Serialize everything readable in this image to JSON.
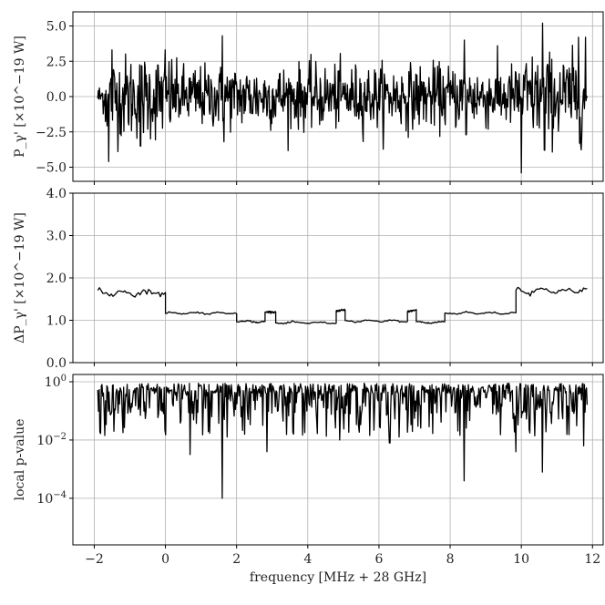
{
  "chart_data": [
    {
      "type": "line",
      "ylabel": "P_γ' [×10^−19 W]",
      "ylim": [
        -6.0,
        6.0
      ],
      "yticks": [
        5.0,
        2.5,
        0.0,
        -2.5,
        -5.0
      ],
      "ytick_labels": [
        "5.0",
        "2.5",
        "0.0",
        "−2.5",
        "−5.0"
      ],
      "xlim": [
        -2.6,
        12.3
      ],
      "grid": true,
      "x_range": [
        -1.9,
        11.85
      ],
      "noise_sigma": 1.1,
      "spikes": [
        {
          "x": -1.6,
          "y": -4.6
        },
        {
          "x": -1.5,
          "y": 3.3
        },
        {
          "x": -0.7,
          "y": -3.5
        },
        {
          "x": 0.0,
          "y": 3.3
        },
        {
          "x": 1.6,
          "y": 4.3
        },
        {
          "x": 1.65,
          "y": -3.2
        },
        {
          "x": 8.4,
          "y": 4.0
        },
        {
          "x": 8.45,
          "y": -2.7
        },
        {
          "x": 10.0,
          "y": -5.4
        },
        {
          "x": 10.6,
          "y": 5.2
        },
        {
          "x": 10.65,
          "y": -3.8
        },
        {
          "x": 11.6,
          "y": 4.2
        },
        {
          "x": 11.8,
          "y": 4.2
        },
        {
          "x": 11.7,
          "y": -2.8
        }
      ]
    },
    {
      "type": "line",
      "ylabel": "ΔP_γ' [×10^−19 W]",
      "ylim": [
        0.0,
        4.0
      ],
      "yticks": [
        4.0,
        3.0,
        2.0,
        1.0,
        0.0
      ],
      "ytick_labels": [
        "4.0",
        "3.0",
        "2.0",
        "1.0",
        "0.0"
      ],
      "xlim": [
        -2.6,
        12.3
      ],
      "grid": true,
      "segments": [
        {
          "x0": -1.9,
          "x1": 0.0,
          "level": 1.65
        },
        {
          "x0": 0.0,
          "x1": 2.0,
          "level": 1.17
        },
        {
          "x0": 2.0,
          "x1": 2.8,
          "level": 0.97
        },
        {
          "x0": 2.8,
          "x1": 3.1,
          "level": 1.18
        },
        {
          "x0": 3.1,
          "x1": 4.8,
          "level": 0.94
        },
        {
          "x0": 4.8,
          "x1": 5.05,
          "level": 1.22
        },
        {
          "x0": 5.05,
          "x1": 6.8,
          "level": 0.98
        },
        {
          "x0": 6.8,
          "x1": 7.05,
          "level": 1.22
        },
        {
          "x0": 7.05,
          "x1": 7.85,
          "level": 0.95
        },
        {
          "x0": 7.85,
          "x1": 9.85,
          "level": 1.17
        },
        {
          "x0": 9.85,
          "x1": 11.85,
          "level": 1.7
        }
      ]
    },
    {
      "type": "line",
      "ylabel": "local p-value",
      "yscale": "log",
      "ylim_log10": [
        -5.6,
        0.25
      ],
      "yticks_log10": [
        0,
        -2,
        -4
      ],
      "ytick_labels": [
        "10^0",
        "10^−2",
        "10^−4"
      ],
      "xlabel": "frequency [MHz + 28 GHz]",
      "xlim": [
        -2.6,
        12.3
      ],
      "xticks": [
        -2,
        0,
        2,
        4,
        6,
        8,
        10,
        12
      ],
      "xtick_labels": [
        "−2",
        "0",
        "2",
        "4",
        "6",
        "8",
        "10",
        "12"
      ],
      "grid": true,
      "dips": [
        {
          "x": 1.6,
          "log10": -4.0
        },
        {
          "x": 8.4,
          "log10": -3.4
        },
        {
          "x": 10.6,
          "log10": -3.1
        },
        {
          "x": 0.7,
          "log10": -2.5
        },
        {
          "x": 2.85,
          "log10": -2.4
        },
        {
          "x": 11.75,
          "log10": -2.2
        },
        {
          "x": 9.85,
          "log10": -2.4
        },
        {
          "x": 4.9,
          "log10": -2.0
        },
        {
          "x": 6.3,
          "log10": -2.1
        },
        {
          "x": -1.45,
          "log10": -1.7
        },
        {
          "x": 3.6,
          "log10": -1.8
        }
      ]
    }
  ]
}
